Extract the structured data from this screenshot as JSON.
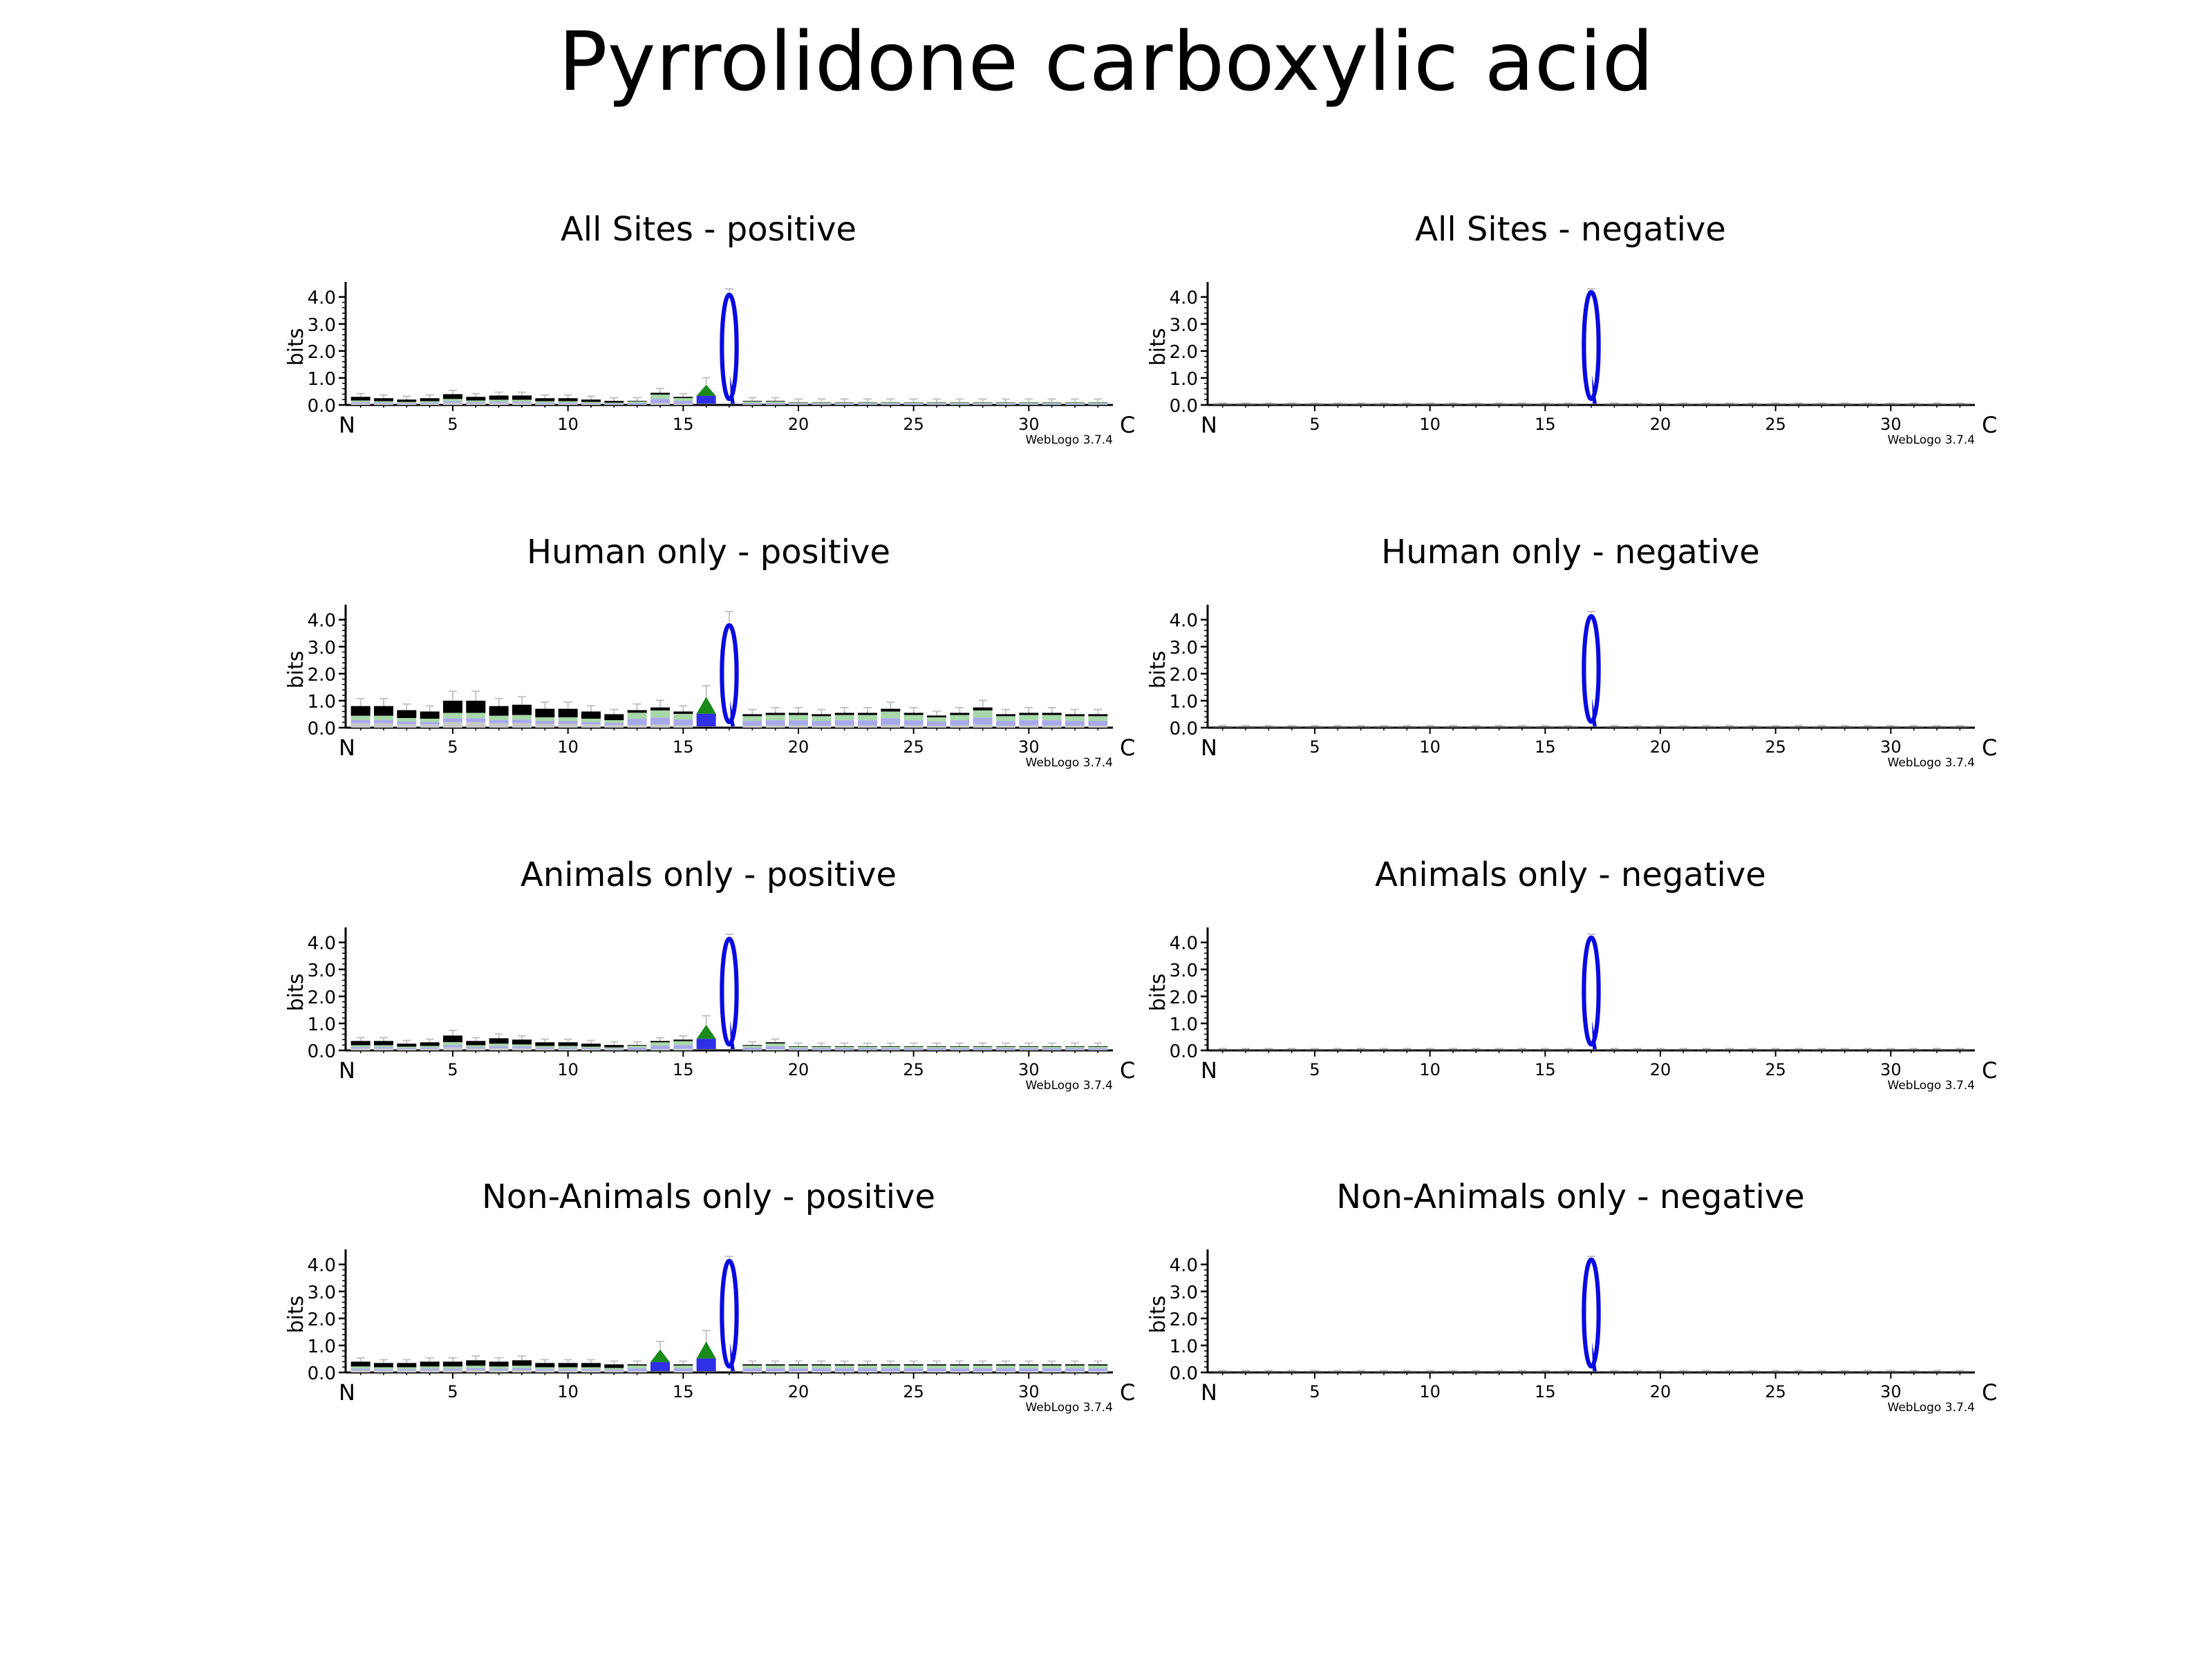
{
  "title": "Pyrrolidone carboxylic acid",
  "chart_data": [
    {
      "type": "sequence-logo",
      "title": "All Sites - positive",
      "ylabel": "bits",
      "ylim": [
        0,
        4.3
      ],
      "yticks": [
        "0.0",
        "1.0",
        "2.0",
        "3.0",
        "4.0"
      ],
      "x": {
        "start_label": "N",
        "end_label": "C",
        "positions": 33,
        "tick_labels": [
          "5",
          "10",
          "15",
          "20",
          "25",
          "30"
        ]
      },
      "credit": "WebLogo 3.7.4",
      "columns": [
        0.3,
        0.25,
        0.2,
        0.25,
        0.4,
        0.3,
        0.35,
        0.35,
        0.25,
        0.25,
        0.2,
        0.15,
        0.15,
        0.45,
        0.3,
        0.75,
        4.2,
        0.15,
        0.15,
        0.1,
        0.1,
        0.1,
        0.1,
        0.1,
        0.1,
        0.1,
        0.1,
        0.1,
        0.1,
        0.1,
        0.1,
        0.1,
        0.1
      ],
      "dominant_residues": [
        {
          "position": 16,
          "letter": "A",
          "bits": 0.75
        },
        {
          "position": 17,
          "letter": "Q",
          "bits": 4.2
        }
      ]
    },
    {
      "type": "sequence-logo",
      "title": "All Sites - negative",
      "ylabel": "bits",
      "ylim": [
        0,
        4.3
      ],
      "yticks": [
        "0.0",
        "1.0",
        "2.0",
        "3.0",
        "4.0"
      ],
      "x": {
        "start_label": "N",
        "end_label": "C",
        "positions": 33,
        "tick_labels": [
          "5",
          "10",
          "15",
          "20",
          "25",
          "30"
        ]
      },
      "credit": "WebLogo 3.7.4",
      "columns": [
        0.02,
        0.02,
        0.02,
        0.02,
        0.02,
        0.02,
        0.02,
        0.02,
        0.02,
        0.02,
        0.02,
        0.02,
        0.02,
        0.02,
        0.02,
        0.02,
        4.3,
        0.02,
        0.02,
        0.02,
        0.02,
        0.02,
        0.02,
        0.02,
        0.02,
        0.02,
        0.02,
        0.02,
        0.02,
        0.02,
        0.02,
        0.02,
        0.02
      ],
      "dominant_residues": [
        {
          "position": 17,
          "letter": "Q",
          "bits": 4.3
        }
      ]
    },
    {
      "type": "sequence-logo",
      "title": "Human only - positive",
      "ylabel": "bits",
      "ylim": [
        0,
        4.3
      ],
      "yticks": [
        "0.0",
        "1.0",
        "2.0",
        "3.0",
        "4.0"
      ],
      "x": {
        "start_label": "N",
        "end_label": "C",
        "positions": 33,
        "tick_labels": [
          "5",
          "10",
          "15",
          "20",
          "25",
          "30"
        ]
      },
      "credit": "WebLogo 3.7.4",
      "columns": [
        0.8,
        0.8,
        0.65,
        0.6,
        1.0,
        1.0,
        0.8,
        0.85,
        0.7,
        0.7,
        0.6,
        0.5,
        0.65,
        0.75,
        0.6,
        1.15,
        3.9,
        0.5,
        0.55,
        0.55,
        0.5,
        0.55,
        0.55,
        0.7,
        0.55,
        0.45,
        0.55,
        0.75,
        0.5,
        0.55,
        0.55,
        0.5,
        0.5
      ],
      "dominant_residues": [
        {
          "position": 16,
          "letter": "A",
          "bits": 1.15
        },
        {
          "position": 17,
          "letter": "Q",
          "bits": 3.9
        }
      ]
    },
    {
      "type": "sequence-logo",
      "title": "Human only - negative",
      "ylabel": "bits",
      "ylim": [
        0,
        4.3
      ],
      "yticks": [
        "0.0",
        "1.0",
        "2.0",
        "3.0",
        "4.0"
      ],
      "x": {
        "start_label": "N",
        "end_label": "C",
        "positions": 33,
        "tick_labels": [
          "5",
          "10",
          "15",
          "20",
          "25",
          "30"
        ]
      },
      "credit": "WebLogo 3.7.4",
      "columns": [
        0.03,
        0.03,
        0.03,
        0.03,
        0.03,
        0.03,
        0.03,
        0.03,
        0.03,
        0.03,
        0.03,
        0.03,
        0.03,
        0.03,
        0.03,
        0.03,
        4.25,
        0.03,
        0.03,
        0.03,
        0.03,
        0.03,
        0.03,
        0.03,
        0.03,
        0.03,
        0.03,
        0.03,
        0.03,
        0.03,
        0.03,
        0.03,
        0.03
      ],
      "dominant_residues": [
        {
          "position": 17,
          "letter": "Q",
          "bits": 4.25
        }
      ]
    },
    {
      "type": "sequence-logo",
      "title": "Animals only - positive",
      "ylabel": "bits",
      "ylim": [
        0,
        4.3
      ],
      "yticks": [
        "0.0",
        "1.0",
        "2.0",
        "3.0",
        "4.0"
      ],
      "x": {
        "start_label": "N",
        "end_label": "C",
        "positions": 33,
        "tick_labels": [
          "5",
          "10",
          "15",
          "20",
          "25",
          "30"
        ]
      },
      "credit": "WebLogo 3.7.4",
      "columns": [
        0.35,
        0.35,
        0.25,
        0.3,
        0.55,
        0.35,
        0.45,
        0.4,
        0.3,
        0.3,
        0.25,
        0.2,
        0.2,
        0.35,
        0.4,
        0.95,
        4.25,
        0.2,
        0.3,
        0.15,
        0.15,
        0.15,
        0.15,
        0.15,
        0.15,
        0.15,
        0.15,
        0.15,
        0.15,
        0.15,
        0.15,
        0.15,
        0.15
      ],
      "dominant_residues": [
        {
          "position": 16,
          "letter": "A",
          "bits": 0.95
        },
        {
          "position": 17,
          "letter": "Q",
          "bits": 4.25
        }
      ]
    },
    {
      "type": "sequence-logo",
      "title": "Animals only - negative",
      "ylabel": "bits",
      "ylim": [
        0,
        4.3
      ],
      "yticks": [
        "0.0",
        "1.0",
        "2.0",
        "3.0",
        "4.0"
      ],
      "x": {
        "start_label": "N",
        "end_label": "C",
        "positions": 33,
        "tick_labels": [
          "5",
          "10",
          "15",
          "20",
          "25",
          "30"
        ]
      },
      "credit": "WebLogo 3.7.4",
      "columns": [
        0.02,
        0.02,
        0.02,
        0.02,
        0.02,
        0.02,
        0.02,
        0.02,
        0.02,
        0.02,
        0.02,
        0.02,
        0.02,
        0.02,
        0.02,
        0.02,
        4.3,
        0.02,
        0.02,
        0.02,
        0.02,
        0.02,
        0.02,
        0.02,
        0.02,
        0.02,
        0.02,
        0.02,
        0.02,
        0.02,
        0.02,
        0.02,
        0.02
      ],
      "dominant_residues": [
        {
          "position": 17,
          "letter": "Q",
          "bits": 4.3
        }
      ]
    },
    {
      "type": "sequence-logo",
      "title": "Non-Animals only - positive",
      "ylabel": "bits",
      "ylim": [
        0,
        4.3
      ],
      "yticks": [
        "0.0",
        "1.0",
        "2.0",
        "3.0",
        "4.0"
      ],
      "x": {
        "start_label": "N",
        "end_label": "C",
        "positions": 33,
        "tick_labels": [
          "5",
          "10",
          "15",
          "20",
          "25",
          "30"
        ]
      },
      "credit": "WebLogo 3.7.4",
      "columns": [
        0.4,
        0.35,
        0.35,
        0.4,
        0.4,
        0.45,
        0.4,
        0.45,
        0.35,
        0.35,
        0.35,
        0.3,
        0.3,
        0.85,
        0.3,
        1.15,
        4.25,
        0.3,
        0.3,
        0.3,
        0.3,
        0.3,
        0.3,
        0.3,
        0.3,
        0.3,
        0.3,
        0.3,
        0.3,
        0.3,
        0.3,
        0.3,
        0.3
      ],
      "dominant_residues": [
        {
          "position": 14,
          "letter": "A",
          "bits": 0.85
        },
        {
          "position": 16,
          "letter": "A",
          "bits": 1.15
        },
        {
          "position": 17,
          "letter": "Q",
          "bits": 4.25
        }
      ]
    },
    {
      "type": "sequence-logo",
      "title": "Non-Animals only - negative",
      "ylabel": "bits",
      "ylim": [
        0,
        4.3
      ],
      "yticks": [
        "0.0",
        "1.0",
        "2.0",
        "3.0",
        "4.0"
      ],
      "x": {
        "start_label": "N",
        "end_label": "C",
        "positions": 33,
        "tick_labels": [
          "5",
          "10",
          "15",
          "20",
          "25",
          "30"
        ]
      },
      "credit": "WebLogo 3.7.4",
      "columns": [
        0.02,
        0.02,
        0.02,
        0.02,
        0.02,
        0.02,
        0.02,
        0.02,
        0.02,
        0.02,
        0.02,
        0.02,
        0.02,
        0.02,
        0.02,
        0.02,
        4.3,
        0.02,
        0.02,
        0.02,
        0.02,
        0.02,
        0.02,
        0.02,
        0.02,
        0.02,
        0.02,
        0.02,
        0.02,
        0.02,
        0.02,
        0.02,
        0.02
      ],
      "dominant_residues": [
        {
          "position": 17,
          "letter": "Q",
          "bits": 4.3
        }
      ]
    }
  ],
  "colors": {
    "q_blue": "#0a0ae0",
    "a_green": "#1a8a1a",
    "dark": "#000000",
    "faded_gray": "#c8c8c8",
    "faded_blue": "#a8a8ec",
    "faded_green": "#a8d8a8",
    "error_bar": "#c4c4c4"
  }
}
